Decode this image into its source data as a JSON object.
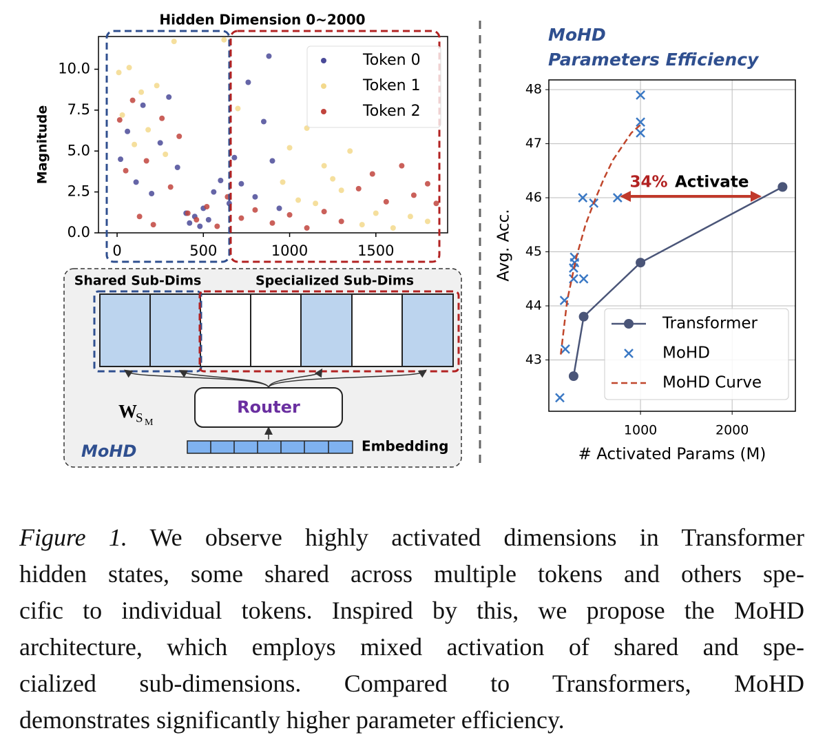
{
  "chart_data": [
    {
      "type": "scatter",
      "title": "Hidden Dimension 0~2000",
      "ylabel": "Magnitude",
      "xlim": [
        -108,
        1916
      ],
      "ylim": [
        0,
        12
      ],
      "xticks": [
        0,
        500,
        1000,
        1500
      ],
      "yticks": [
        {
          "value": 0,
          "label": "0.0"
        },
        {
          "value": 2.5,
          "label": "2.5"
        },
        {
          "value": 5,
          "label": "5.0"
        },
        {
          "value": 7.5,
          "label": "7.5"
        },
        {
          "value": 10,
          "label": "10.0"
        }
      ],
      "series": [
        {
          "name": "Token 0",
          "color": "#4a4a98",
          "x": [
            20,
            60,
            110,
            150,
            200,
            250,
            300,
            350,
            400,
            420,
            450,
            480,
            500,
            530,
            560,
            600,
            650,
            680,
            720,
            760,
            800,
            850,
            880,
            900,
            940
          ],
          "values": [
            4.5,
            6.2,
            3.1,
            7.8,
            2.4,
            5.5,
            8.3,
            4.0,
            1.2,
            0.6,
            1.0,
            0.4,
            1.5,
            0.8,
            2.5,
            3.2,
            1.8,
            4.6,
            3.0,
            9.2,
            2.2,
            6.8,
            10.8,
            4.4,
            1.5
          ]
        },
        {
          "name": "Token 1",
          "color": "#f3d98c",
          "x": [
            10,
            30,
            70,
            100,
            140,
            180,
            230,
            280,
            330,
            620,
            700,
            960,
            1000,
            1050,
            1100,
            1150,
            1200,
            1250,
            1300,
            1350,
            1420,
            1500,
            1600,
            1700,
            1800
          ],
          "values": [
            9.8,
            7.2,
            10.1,
            5.4,
            8.6,
            6.3,
            9.0,
            4.8,
            11.7,
            11.8,
            7.6,
            3.1,
            5.2,
            2.0,
            6.4,
            1.8,
            4.1,
            3.3,
            2.6,
            5.0,
            0.5,
            1.2,
            0.3,
            1.0,
            0.7
          ]
        },
        {
          "name": "Token 2",
          "color": "#c1443d",
          "x": [
            15,
            50,
            90,
            130,
            170,
            210,
            260,
            310,
            360,
            410,
            460,
            520,
            580,
            640,
            720,
            800,
            900,
            1000,
            1100,
            1200,
            1300,
            1400,
            1480,
            1560,
            1650,
            1720,
            1800,
            1850
          ],
          "values": [
            6.9,
            3.8,
            8.1,
            1.0,
            4.4,
            0.5,
            7.0,
            2.8,
            5.9,
            1.2,
            0.8,
            1.6,
            0.4,
            2.2,
            0.9,
            1.4,
            0.6,
            1.1,
            0.3,
            1.3,
            0.7,
            2.7,
            3.6,
            1.9,
            4.1,
            2.3,
            3.0,
            1.8
          ]
        }
      ]
    },
    {
      "type": "line",
      "title": [
        "MoHD",
        "Parameters Efficiency"
      ],
      "xlabel": "# Activated Params (M)",
      "ylabel": "Avg. Acc.",
      "xlim": [
        0,
        2690
      ],
      "ylim": [
        42.05,
        48.18
      ],
      "xticks": [
        1000,
        2000
      ],
      "yticks": [
        43,
        44,
        45,
        46,
        47,
        48
      ],
      "grid": true,
      "annotation": [
        "34%",
        "Activate"
      ],
      "series": [
        {
          "name": "Transformer",
          "color": "#4a5578",
          "line": true,
          "marker": "o",
          "x": [
            270,
            380,
            1000,
            2550
          ],
          "values": [
            42.7,
            43.8,
            44.8,
            46.2
          ]
        },
        {
          "name": "MoHD",
          "color": "#3a78c4",
          "line": false,
          "marker": "x",
          "x": [
            120,
            180,
            170,
            270,
            270,
            280,
            280,
            380,
            370,
            490,
            750,
            1000,
            1000,
            1000
          ],
          "values": [
            42.3,
            43.2,
            44.1,
            44.5,
            44.7,
            44.8,
            44.9,
            44.5,
            46.0,
            45.9,
            46.0,
            47.2,
            47.4,
            47.9
          ]
        },
        {
          "name": "MoHD Curve",
          "color": "#c0462b",
          "line": true,
          "dash": true,
          "marker": null,
          "x": [
            130,
            200,
            300,
            400,
            500,
            600,
            700,
            800,
            900,
            1000
          ],
          "values": [
            43.1,
            44.1,
            44.9,
            45.5,
            45.95,
            46.35,
            46.7,
            46.95,
            47.2,
            47.35
          ]
        }
      ]
    }
  ],
  "diagram": {
    "shared": "Shared Sub-Dims",
    "specialized": "Specialized Sub-Dims",
    "router": "Router",
    "weight": "W",
    "weight_sub": "S",
    "weight_subsub": "M",
    "embedding": "Embedding",
    "label": "MoHD"
  },
  "caption": {
    "label": "Figure 1.",
    "lines": [
      " We observe highly activated dimensions in Transformer",
      "hidden states, some shared across multiple tokens and others spe-",
      "cific to individual tokens. Inspired by this, we propose the MoHD",
      "architecture, which employs mixed activation of shared and spe-",
      "cialized sub-dimensions.  Compared to Transformers, MoHD",
      "demonstrates significantly higher parameter efficiency."
    ]
  }
}
